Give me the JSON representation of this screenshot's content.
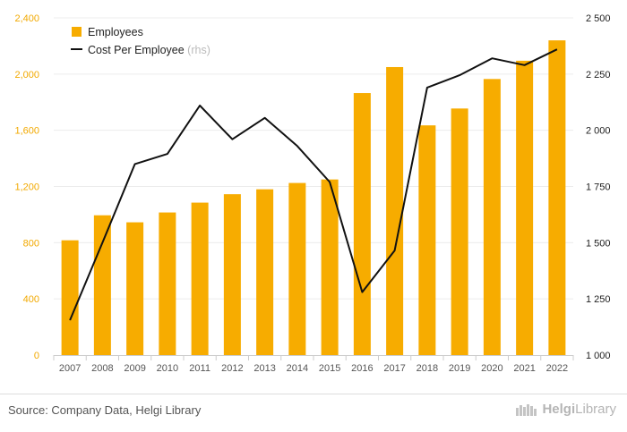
{
  "chart_data": {
    "type": "bar+line",
    "categories": [
      "2007",
      "2008",
      "2009",
      "2010",
      "2011",
      "2012",
      "2013",
      "2014",
      "2015",
      "2016",
      "2017",
      "2018",
      "2019",
      "2020",
      "2021",
      "2022"
    ],
    "series": [
      {
        "name": "Employees",
        "type": "bar",
        "axis": "left",
        "color": "#f7ac00",
        "values": [
          817,
          995,
          945,
          1015,
          1085,
          1145,
          1180,
          1225,
          1250,
          1865,
          2050,
          1635,
          1755,
          1965,
          2095,
          2240
        ]
      },
      {
        "name": "Cost Per Employee",
        "name_suffix": "(rhs)",
        "type": "line",
        "axis": "right",
        "color": "#111111",
        "values": [
          1155,
          1500,
          1850,
          1895,
          2110,
          1960,
          2055,
          1930,
          1770,
          1280,
          1465,
          2190,
          2245,
          2320,
          2290,
          2360
        ]
      }
    ],
    "left_axis": {
      "min": 0,
      "max": 2400,
      "ticks": [
        "0",
        "400",
        "800",
        "1,200",
        "1,600",
        "2,000",
        "2,400"
      ],
      "color": "#f2a900"
    },
    "right_axis": {
      "min": 1000,
      "max": 2500,
      "ticks": [
        "1 000",
        "1 250",
        "1 500",
        "1 750",
        "2 000",
        "2 250",
        "2 500"
      ]
    },
    "legend_position": "top-left"
  },
  "footer": {
    "source": "Source: Company Data, Helgi Library",
    "logo_brand": "Helgi",
    "logo_suffix": "Library",
    "logo_icon": "helgi-library-logo-icon"
  }
}
